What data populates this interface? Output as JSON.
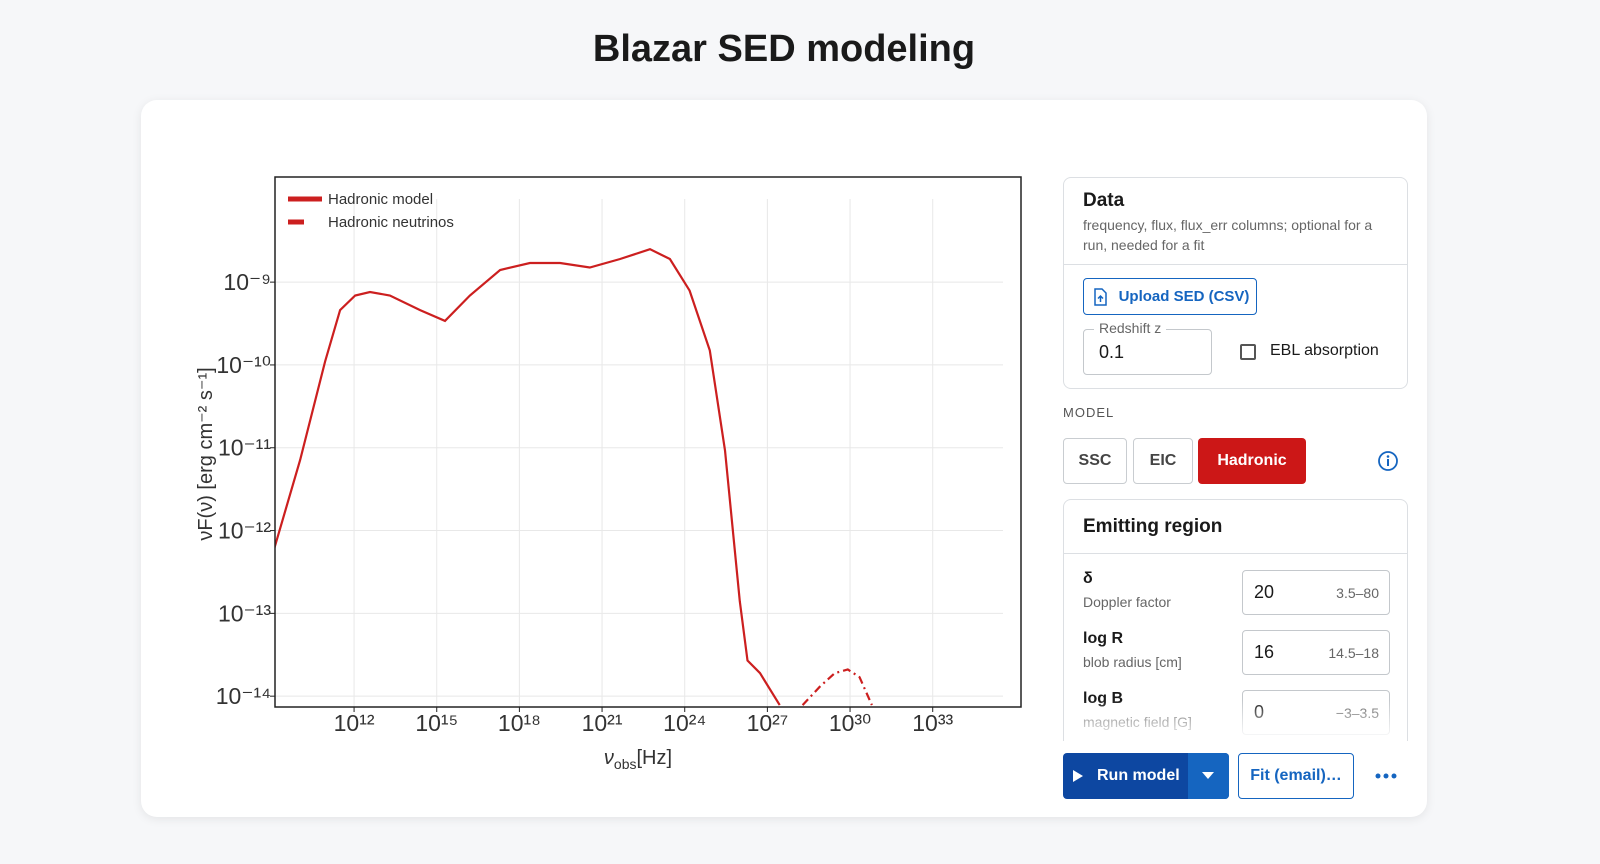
{
  "header": {
    "title": "Blazar SED modeling"
  },
  "chart_data": {
    "type": "line",
    "x_label": {
      "symbol": "ν",
      "subscript": "obs",
      "unit": "[Hz]"
    },
    "y_label": "νF(ν) [erg cm⁻² s⁻¹]",
    "log_x": true,
    "log_y": true,
    "grid": true,
    "legend": "upper left",
    "xlim": [
      1350000000.0,
      1.6e+36
    ],
    "ylim": [
      7.4e-15,
      1.86e-08
    ],
    "xticks": [
      {
        "value": 1000000000000.0,
        "label": "10¹²"
      },
      {
        "value": 1000000000000000.0,
        "label": "10¹⁵"
      },
      {
        "value": 1e+18,
        "label": "10¹⁸"
      },
      {
        "value": 1e+21,
        "label": "10²¹"
      },
      {
        "value": 1e+24,
        "label": "10²⁴"
      },
      {
        "value": 1e+27,
        "label": "10²⁷"
      },
      {
        "value": 1e+30,
        "label": "10³⁰"
      },
      {
        "value": 1e+33,
        "label": "10³³"
      }
    ],
    "yticks": [
      {
        "value": 1e-14,
        "label": "10⁻¹⁴"
      },
      {
        "value": 1e-13,
        "label": "10⁻¹³"
      },
      {
        "value": 1e-12,
        "label": "10⁻¹²"
      },
      {
        "value": 1e-11,
        "label": "10⁻¹¹"
      },
      {
        "value": 1e-10,
        "label": "10⁻¹⁰"
      },
      {
        "value": 1e-09,
        "label": "10⁻⁹"
      }
    ],
    "series": [
      {
        "name": "Hadronic model",
        "color": "#cc1f1f",
        "line_style": "solid",
        "x": [
          1300000000.0,
          11000000000.0,
          89000000000.0,
          310000000000.0,
          1100000000000.0,
          3800000000000.0,
          20000000000000.0,
          250000000000000.0,
          2000000000000000.0,
          1.6e+16,
          2e+17,
          2.4e+18,
          3e+19,
          3.6e+20,
          4.5e+21,
          5.5e+22,
          2.9e+23,
          1.5e+24,
          8.1e+24,
          2.9e+25,
          1e+26,
          1.9e+26,
          5.4e+26,
          2.8e+27
        ],
        "values": [
          6.2e-13,
          7.1e-12,
          1.1e-10,
          4.6e-10,
          6.9e-10,
          7.6e-10,
          6.9e-10,
          4.6e-10,
          3.4e-10,
          6.9e-10,
          1.4e-09,
          1.7e-09,
          1.7e-09,
          1.5e-09,
          1.9e-09,
          2.5e-09,
          1.9e-09,
          7.9e-10,
          1.5e-10,
          9.3e-12,
          1.4e-13,
          2.7e-14,
          1.9e-14,
          7.8e-15
        ]
      },
      {
        "name": "Hadronic neutrinos",
        "color": "#cc1f1f",
        "line_style": "dashdot",
        "x": [
          1.9e+28,
          8e+28,
          2.8e+29,
          8.3e+29,
          2.2e+30,
          6.2e+30
        ],
        "values": [
          7.8e-15,
          1.3e-14,
          1.9e-14,
          2.1e-14,
          1.7e-14,
          7.8e-15
        ]
      }
    ]
  },
  "data_panel": {
    "title": "Data",
    "description": "frequency, flux, flux_err columns; optional for a run, needed for a fit",
    "upload_button": "Upload SED (CSV)",
    "redshift": {
      "label": "Redshift z",
      "value": 0.1
    },
    "ebl": {
      "label": "EBL absorption",
      "checked": false
    }
  },
  "model": {
    "label": "MODEL",
    "options": [
      "SSC",
      "EIC",
      "Hadronic"
    ],
    "selected": 2
  },
  "emitting_region": {
    "title": "Emitting region",
    "params": [
      {
        "symbol": "δ",
        "description": "Doppler factor",
        "value": 20,
        "range": "3.5–80"
      },
      {
        "symbol": "log R",
        "description": "blob radius [cm]",
        "value": 16,
        "range": "14.5–18"
      },
      {
        "symbol": "log B",
        "description": "magnetic field [G]",
        "value": 0,
        "range": "−3–3.5"
      }
    ]
  },
  "actions": {
    "run": "Run model",
    "fit": "Fit (email)…"
  }
}
